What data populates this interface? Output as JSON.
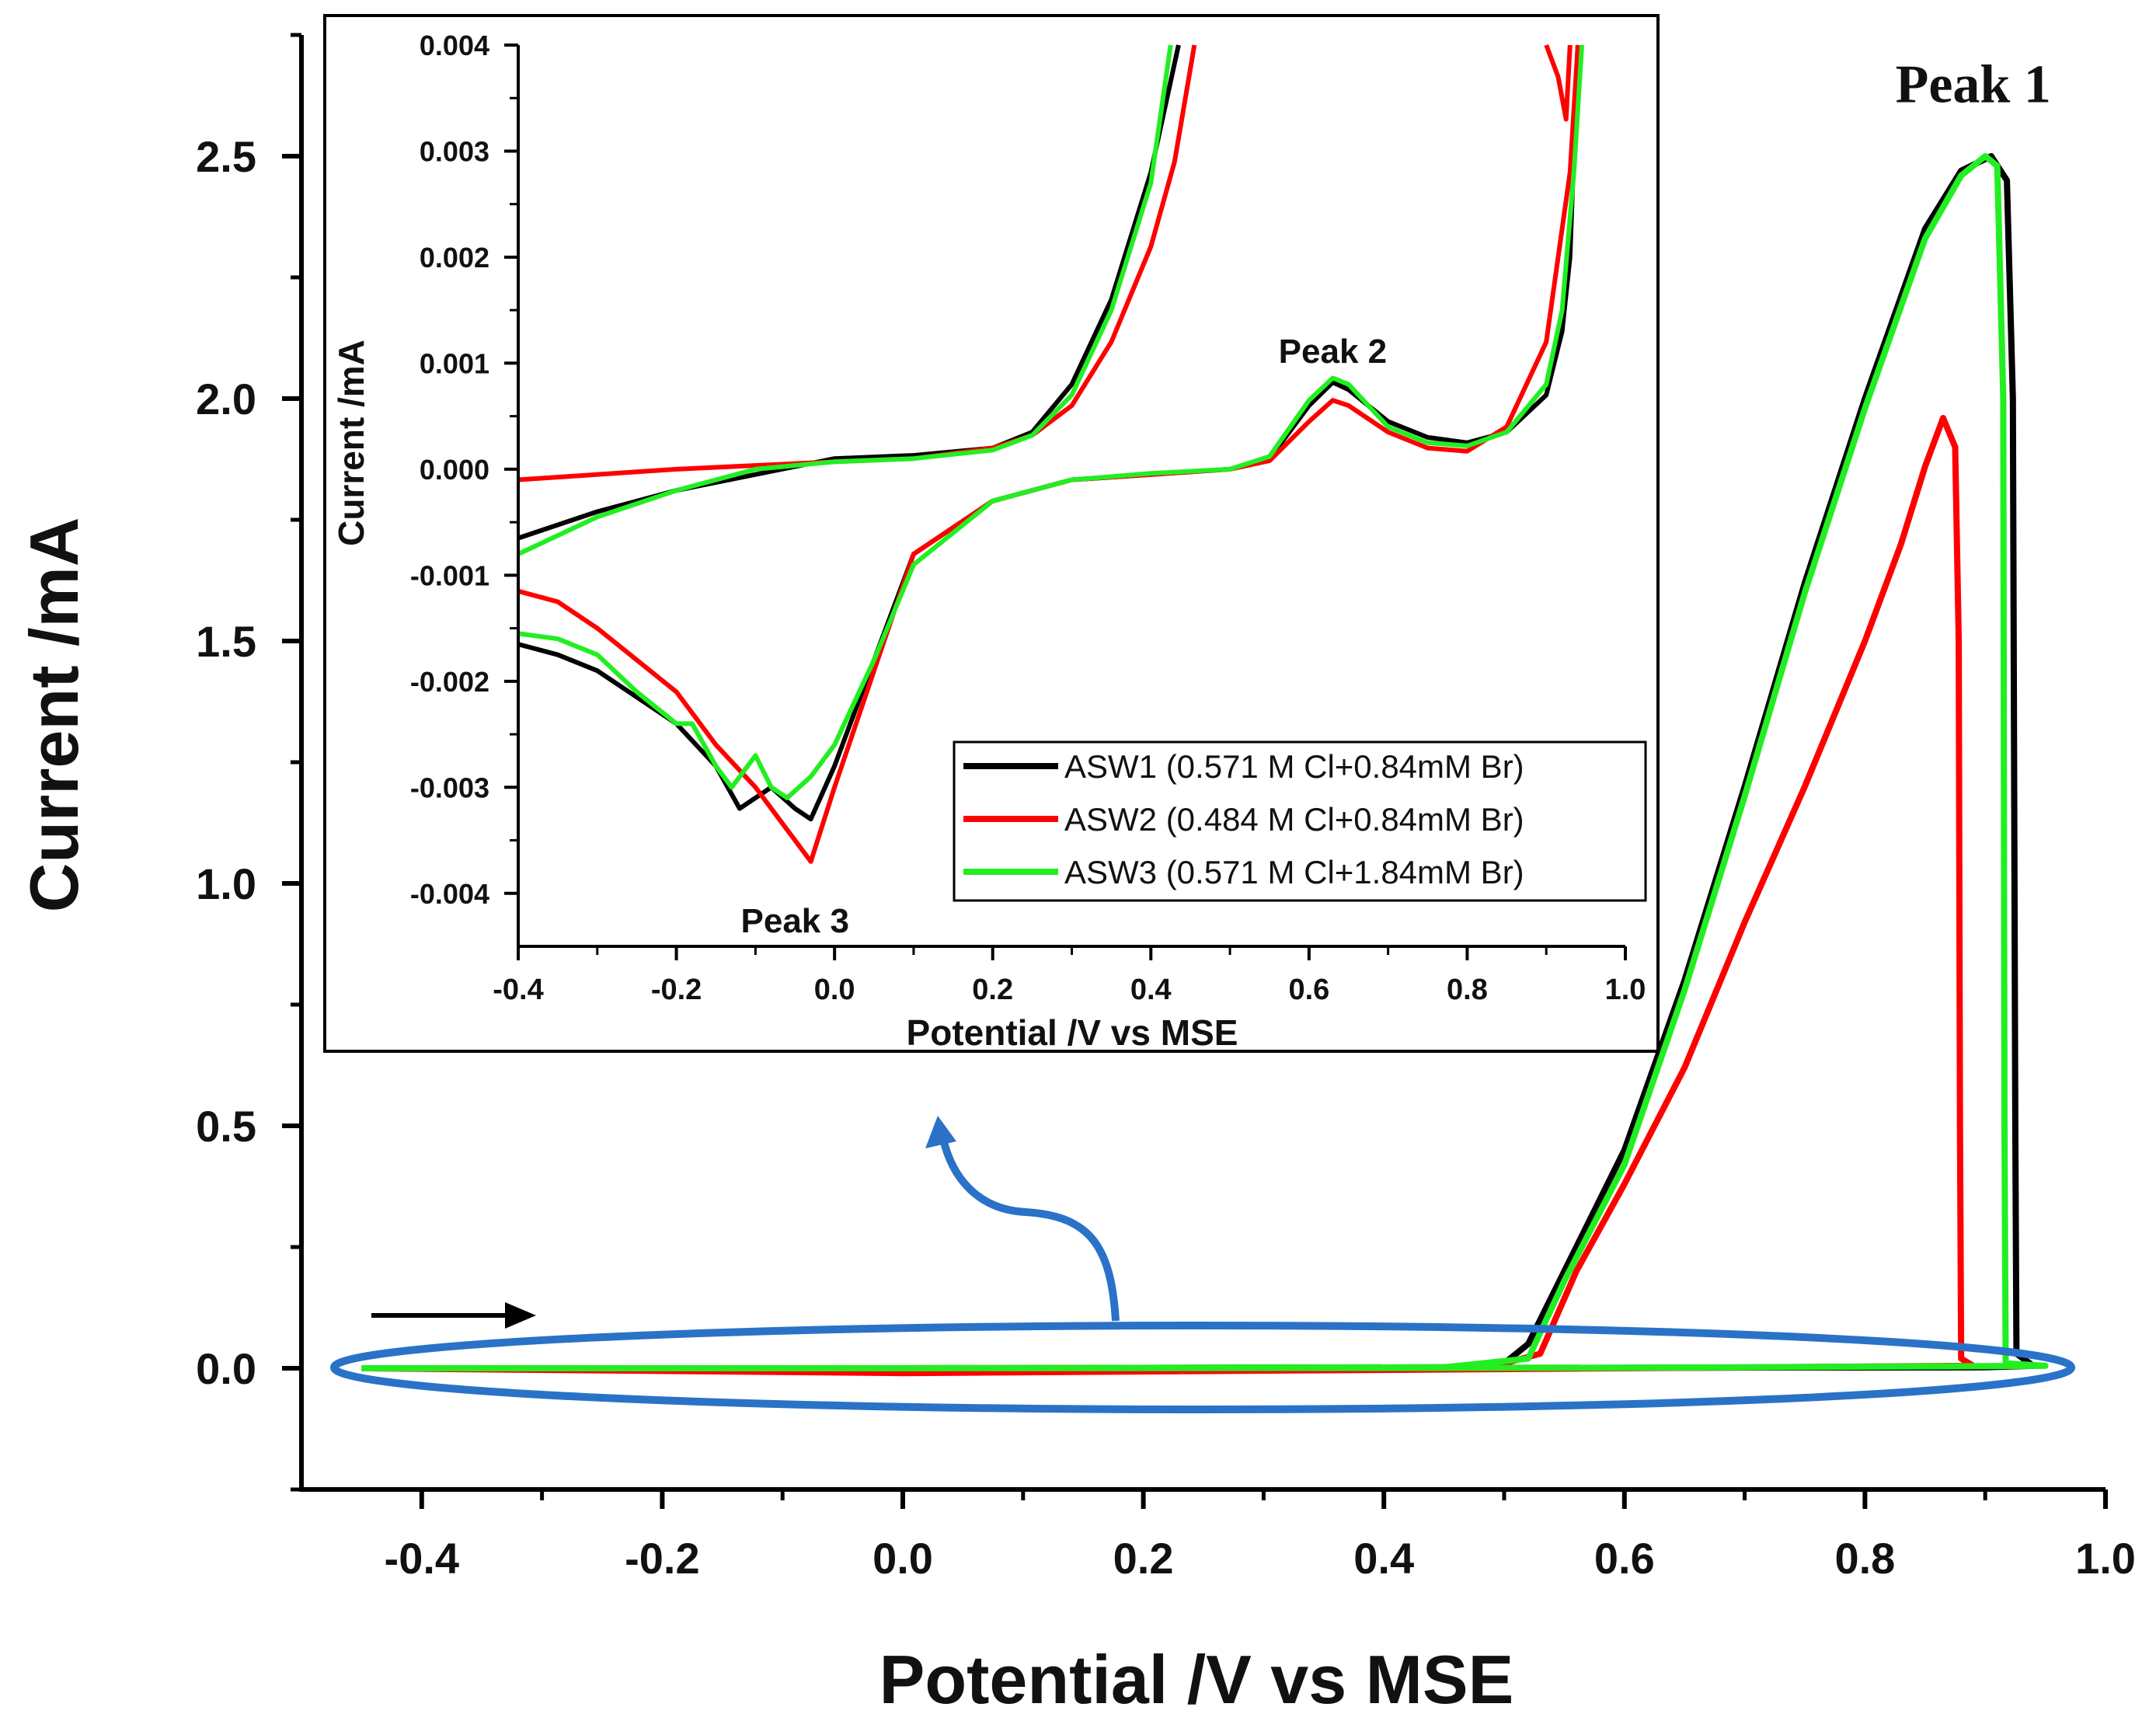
{
  "chart_data": [
    {
      "type": "line",
      "role": "main",
      "xlabel": "Potential /V vs MSE",
      "ylabel": "Current /mA",
      "xlim": [
        -0.5,
        1.0
      ],
      "ylim": [
        -0.25,
        2.75
      ],
      "xticks": [
        -0.4,
        -0.2,
        0.0,
        0.2,
        0.4,
        0.6,
        0.8,
        1.0
      ],
      "xtick_labels": [
        "-0.4",
        "-0.2",
        "0.0",
        "0.2",
        "0.4",
        "0.6",
        "0.8",
        "1.0"
      ],
      "yticks": [
        0.0,
        0.5,
        1.0,
        1.5,
        2.0,
        2.5
      ],
      "ytick_labels": [
        "0.0",
        "0.5",
        "1.0",
        "1.5",
        "2.0",
        "2.5"
      ],
      "annotations": [
        {
          "text": "Peak 1",
          "x": 0.89,
          "y": 2.65
        }
      ],
      "series": [
        {
          "name": "ASW1",
          "color": "#000000",
          "points": [
            [
              -0.45,
              0.0
            ],
            [
              0.0,
              0.0
            ],
            [
              0.45,
              0.002
            ],
            [
              0.5,
              0.01
            ],
            [
              0.52,
              0.05
            ],
            [
              0.55,
              0.2
            ],
            [
              0.6,
              0.45
            ],
            [
              0.65,
              0.8
            ],
            [
              0.7,
              1.2
            ],
            [
              0.75,
              1.62
            ],
            [
              0.8,
              2.0
            ],
            [
              0.85,
              2.35
            ],
            [
              0.88,
              2.47
            ],
            [
              0.905,
              2.5
            ],
            [
              0.918,
              2.45
            ],
            [
              0.923,
              2.0
            ],
            [
              0.925,
              0.5
            ],
            [
              0.926,
              0.03
            ],
            [
              0.94,
              0.005
            ],
            [
              0.9,
              0.002
            ],
            [
              0.6,
              0.001
            ],
            [
              0.0,
              0.0
            ],
            [
              -0.45,
              0.0
            ]
          ]
        },
        {
          "name": "ASW2",
          "color": "#ff0000",
          "points": [
            [
              -0.45,
              0.0
            ],
            [
              0.0,
              -0.01
            ],
            [
              0.45,
              0.002
            ],
            [
              0.5,
              0.01
            ],
            [
              0.53,
              0.03
            ],
            [
              0.56,
              0.2
            ],
            [
              0.6,
              0.38
            ],
            [
              0.65,
              0.62
            ],
            [
              0.7,
              0.92
            ],
            [
              0.75,
              1.2
            ],
            [
              0.8,
              1.5
            ],
            [
              0.83,
              1.7
            ],
            [
              0.85,
              1.86
            ],
            [
              0.865,
              1.96
            ],
            [
              0.875,
              1.9
            ],
            [
              0.878,
              1.5
            ],
            [
              0.879,
              0.5
            ],
            [
              0.88,
              0.02
            ],
            [
              0.89,
              0.005
            ],
            [
              0.6,
              0.0
            ],
            [
              0.0,
              -0.01
            ],
            [
              -0.45,
              0.0
            ]
          ]
        },
        {
          "name": "ASW3",
          "color": "#22ee22",
          "points": [
            [
              -0.45,
              0.0
            ],
            [
              0.0,
              0.0
            ],
            [
              0.45,
              0.002
            ],
            [
              0.52,
              0.02
            ],
            [
              0.55,
              0.18
            ],
            [
              0.6,
              0.42
            ],
            [
              0.65,
              0.78
            ],
            [
              0.7,
              1.18
            ],
            [
              0.75,
              1.6
            ],
            [
              0.8,
              1.98
            ],
            [
              0.85,
              2.33
            ],
            [
              0.88,
              2.46
            ],
            [
              0.9,
              2.5
            ],
            [
              0.91,
              2.48
            ],
            [
              0.915,
              2.0
            ],
            [
              0.916,
              0.5
            ],
            [
              0.917,
              0.01
            ],
            [
              0.95,
              0.005
            ],
            [
              0.6,
              0.001
            ],
            [
              0.0,
              0.0
            ],
            [
              -0.45,
              0.0
            ]
          ]
        }
      ]
    },
    {
      "type": "line",
      "role": "inset",
      "xlabel": "Potential /V vs MSE",
      "ylabel": "Current /mA",
      "xlim": [
        -0.4,
        1.0
      ],
      "ylim": [
        -0.0045,
        0.004
      ],
      "xticks": [
        -0.4,
        -0.2,
        0.0,
        0.2,
        0.4,
        0.6,
        0.8,
        1.0
      ],
      "xtick_labels": [
        "-0.4",
        "-0.2",
        "0.0",
        "0.2",
        "0.4",
        "0.6",
        "0.8",
        "1.0"
      ],
      "yticks": [
        -0.004,
        -0.003,
        -0.002,
        -0.001,
        0.0,
        0.001,
        0.002,
        0.003,
        0.004
      ],
      "ytick_labels": [
        "-0.004",
        "-0.003",
        "-0.002",
        "-0.001",
        "0.000",
        "0.001",
        "0.002",
        "0.003",
        "0.004"
      ],
      "annotations": [
        {
          "text": "Peak 2",
          "x": 0.63,
          "y": 0.00112
        },
        {
          "text": "Peak 3",
          "x": -0.05,
          "y": -0.00425
        }
      ],
      "legend": {
        "position": "lower-right",
        "entries": [
          "ASW1 (0.571 M Cl+0.84mM Br)",
          "ASW2 (0.484 M Cl+0.84mM Br)",
          "ASW3 (0.571 M Cl+1.84mM Br)"
        ]
      },
      "series": [
        {
          "name": "ASW1",
          "color": "#000000",
          "segments": [
            [
              [
                -0.4,
                -0.00065
              ],
              [
                -0.3,
                -0.0004
              ],
              [
                -0.2,
                -0.0002
              ],
              [
                -0.1,
                -5e-05
              ],
              [
                0.0,
                0.0001
              ],
              [
                0.1,
                0.00013
              ],
              [
                0.2,
                0.0002
              ],
              [
                0.25,
                0.00035
              ],
              [
                0.3,
                0.0008
              ],
              [
                0.35,
                0.0016
              ],
              [
                0.4,
                0.0028
              ],
              [
                0.435,
                0.004
              ]
            ],
            [
              [
                0.94,
                0.004
              ],
              [
                0.935,
                0.003
              ],
              [
                0.93,
                0.002
              ],
              [
                0.92,
                0.0013
              ],
              [
                0.9,
                0.0007
              ],
              [
                0.85,
                0.00035
              ],
              [
                0.8,
                0.00025
              ],
              [
                0.75,
                0.0003
              ],
              [
                0.7,
                0.00045
              ],
              [
                0.65,
                0.00075
              ],
              [
                0.63,
                0.00082
              ],
              [
                0.6,
                0.0006
              ],
              [
                0.55,
                0.0001
              ],
              [
                0.5,
                0.0
              ],
              [
                0.4,
                -5e-05
              ],
              [
                0.3,
                -0.0001
              ],
              [
                0.2,
                -0.0003
              ],
              [
                0.1,
                -0.0008
              ],
              [
                0.05,
                -0.0018
              ],
              [
                0.0,
                -0.0028
              ],
              [
                -0.03,
                -0.0033
              ],
              [
                -0.05,
                -0.0032
              ],
              [
                -0.08,
                -0.003
              ],
              [
                -0.1,
                -0.0031
              ],
              [
                -0.12,
                -0.0032
              ],
              [
                -0.15,
                -0.0028
              ],
              [
                -0.2,
                -0.0024
              ],
              [
                -0.3,
                -0.0019
              ],
              [
                -0.35,
                -0.00175
              ],
              [
                -0.4,
                -0.00165
              ]
            ]
          ]
        },
        {
          "name": "ASW2",
          "color": "#ff0000",
          "segments": [
            [
              [
                -0.4,
                -0.0001
              ],
              [
                -0.2,
                0.0
              ],
              [
                0.0,
                7e-05
              ],
              [
                0.1,
                0.0001
              ],
              [
                0.2,
                0.0002
              ],
              [
                0.25,
                0.00032
              ],
              [
                0.3,
                0.0006
              ],
              [
                0.35,
                0.0012
              ],
              [
                0.4,
                0.0021
              ],
              [
                0.43,
                0.0029
              ],
              [
                0.455,
                0.004
              ]
            ],
            [
              [
                0.93,
                0.004
              ],
              [
                0.925,
                0.0033
              ],
              [
                0.915,
                0.0037
              ],
              [
                0.9,
                0.004
              ]
            ],
            [
              [
                0.94,
                0.004
              ],
              [
                0.93,
                0.0028
              ],
              [
                0.9,
                0.0012
              ],
              [
                0.85,
                0.0004
              ],
              [
                0.8,
                0.00017
              ],
              [
                0.75,
                0.0002
              ],
              [
                0.7,
                0.00035
              ],
              [
                0.65,
                0.0006
              ],
              [
                0.63,
                0.00065
              ],
              [
                0.6,
                0.00045
              ],
              [
                0.55,
                8e-05
              ],
              [
                0.5,
                0.0
              ],
              [
                0.4,
                -5e-05
              ],
              [
                0.3,
                -0.0001
              ],
              [
                0.2,
                -0.0003
              ],
              [
                0.1,
                -0.0008
              ],
              [
                0.05,
                -0.0019
              ],
              [
                0.0,
                -0.003
              ],
              [
                -0.03,
                -0.0037
              ],
              [
                -0.06,
                -0.0034
              ],
              [
                -0.1,
                -0.003
              ],
              [
                -0.15,
                -0.0026
              ],
              [
                -0.2,
                -0.0021
              ],
              [
                -0.3,
                -0.0015
              ],
              [
                -0.35,
                -0.00125
              ],
              [
                -0.4,
                -0.00115
              ]
            ]
          ]
        },
        {
          "name": "ASW3",
          "color": "#22ee22",
          "segments": [
            [
              [
                -0.4,
                -0.0008
              ],
              [
                -0.3,
                -0.00045
              ],
              [
                -0.2,
                -0.0002
              ],
              [
                -0.1,
                0.0
              ],
              [
                0.0,
                7e-05
              ],
              [
                0.1,
                0.0001
              ],
              [
                0.2,
                0.00018
              ],
              [
                0.25,
                0.00032
              ],
              [
                0.3,
                0.0007
              ],
              [
                0.35,
                0.0015
              ],
              [
                0.4,
                0.0027
              ],
              [
                0.425,
                0.004
              ]
            ],
            [
              [
                0.945,
                0.004
              ],
              [
                0.935,
                0.0028
              ],
              [
                0.92,
                0.0015
              ],
              [
                0.9,
                0.0008
              ],
              [
                0.85,
                0.00035
              ],
              [
                0.8,
                0.00022
              ],
              [
                0.75,
                0.00025
              ],
              [
                0.7,
                0.0004
              ],
              [
                0.65,
                0.0008
              ],
              [
                0.63,
                0.00086
              ],
              [
                0.6,
                0.00065
              ],
              [
                0.55,
                0.00012
              ],
              [
                0.5,
                0.0
              ],
              [
                0.4,
                -4e-05
              ],
              [
                0.3,
                -0.0001
              ],
              [
                0.2,
                -0.0003
              ],
              [
                0.1,
                -0.0009
              ],
              [
                0.05,
                -0.0018
              ],
              [
                0.0,
                -0.0026
              ],
              [
                -0.03,
                -0.0029
              ],
              [
                -0.06,
                -0.0031
              ],
              [
                -0.08,
                -0.003
              ],
              [
                -0.1,
                -0.0027
              ],
              [
                -0.13,
                -0.003
              ],
              [
                -0.15,
                -0.0028
              ],
              [
                -0.18,
                -0.0024
              ],
              [
                -0.2,
                -0.0024
              ],
              [
                -0.25,
                -0.0021
              ],
              [
                -0.3,
                -0.00175
              ],
              [
                -0.35,
                -0.0016
              ],
              [
                -0.4,
                -0.00155
              ]
            ]
          ]
        }
      ]
    }
  ]
}
